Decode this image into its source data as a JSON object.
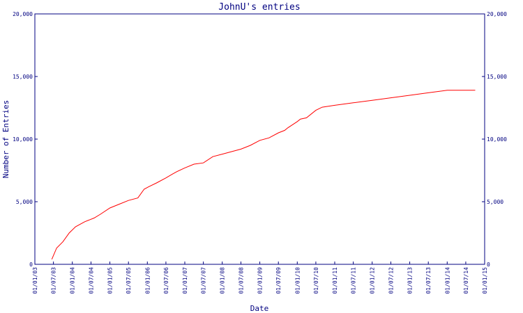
{
  "chart_data": {
    "type": "line",
    "title": "JohnU's entries",
    "xlabel": "Date",
    "ylabel": "Number of Entries",
    "ylim": [
      0,
      20000
    ],
    "xlim": [
      "2003-01-01",
      "2015-01-01"
    ],
    "y_ticks": [
      0,
      5000,
      10000,
      15000,
      20000
    ],
    "y_tick_labels": [
      "0",
      "5,000",
      "10,000",
      "15,000",
      "20,000"
    ],
    "y_ticks_right": true,
    "x_ticks": [
      "2003-01-01",
      "2003-07-01",
      "2004-01-01",
      "2004-07-01",
      "2005-01-01",
      "2005-07-01",
      "2006-01-01",
      "2006-07-01",
      "2007-01-01",
      "2007-07-01",
      "2008-01-01",
      "2008-07-01",
      "2009-01-01",
      "2009-07-01",
      "2010-01-01",
      "2010-07-01",
      "2011-01-01",
      "2011-07-01",
      "2012-01-01",
      "2012-07-01",
      "2013-01-01",
      "2013-07-01",
      "2014-01-01",
      "2014-07-01",
      "2015-01-01"
    ],
    "x_tick_labels": [
      "01/01/03",
      "01/07/03",
      "01/01/04",
      "01/07/04",
      "01/01/05",
      "01/07/05",
      "01/01/06",
      "01/07/06",
      "01/01/07",
      "01/07/07",
      "01/01/08",
      "01/07/08",
      "01/01/09",
      "01/07/09",
      "01/01/10",
      "01/07/10",
      "01/01/11",
      "01/07/11",
      "01/01/12",
      "01/07/12",
      "01/01/13",
      "01/07/13",
      "01/01/14",
      "01/07/14",
      "01/01/15"
    ],
    "grid": false,
    "colors": {
      "axis": "#000080",
      "line": "#ff0000",
      "background": "#ffffff"
    },
    "series": [
      {
        "color": "#ff0000",
        "x": [
          "2003-06-15",
          "2003-08-01",
          "2003-10-01",
          "2003-12-01",
          "2004-02-01",
          "2004-05-01",
          "2004-08-01",
          "2004-10-01",
          "2005-01-01",
          "2005-04-01",
          "2005-07-01",
          "2005-10-01",
          "2005-12-01",
          "2006-01-15",
          "2006-04-01",
          "2006-07-01",
          "2006-09-01",
          "2006-10-15",
          "2007-01-01",
          "2007-04-01",
          "2007-07-01",
          "2007-10-01",
          "2008-01-01",
          "2008-04-01",
          "2008-07-01",
          "2008-10-01",
          "2009-01-01",
          "2009-04-01",
          "2009-07-01",
          "2009-09-01",
          "2009-10-01",
          "2010-01-01",
          "2010-02-01",
          "2010-04-01",
          "2010-07-01",
          "2010-09-01",
          "2011-01-01",
          "2011-07-01",
          "2011-10-01",
          "2012-01-01",
          "2012-07-01",
          "2013-01-01",
          "2013-07-01",
          "2014-01-01",
          "2014-07-01",
          "2014-10-01"
        ],
        "y": [
          400,
          1300,
          1800,
          2500,
          3000,
          3400,
          3700,
          4000,
          4500,
          4800,
          5100,
          5300,
          6000,
          6200,
          6500,
          6900,
          7200,
          7400,
          7700,
          8000,
          8100,
          8600,
          8800,
          9000,
          9200,
          9500,
          9900,
          10100,
          10500,
          10700,
          10900,
          11400,
          11600,
          11700,
          12300,
          12550,
          12700,
          12900,
          13000,
          13100,
          13300,
          13500,
          13700,
          13900,
          13900,
          13900
        ]
      }
    ]
  }
}
